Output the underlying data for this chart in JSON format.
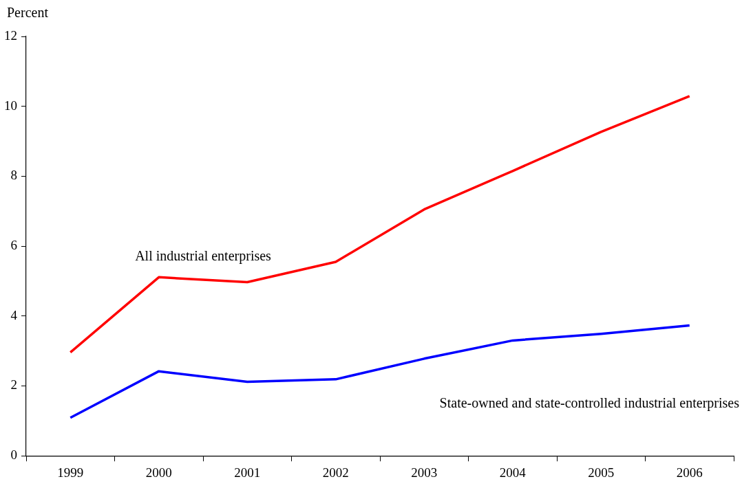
{
  "chart_data": {
    "type": "line",
    "ylabel": "Percent",
    "categories": [
      "1999",
      "2000",
      "2001",
      "2002",
      "2003",
      "2004",
      "2005",
      "2006"
    ],
    "series": [
      {
        "name": "All industrial enterprises",
        "color": "#ff0000",
        "values": [
          2.96,
          5.11,
          4.97,
          5.55,
          7.05,
          8.15,
          9.27,
          10.29
        ]
      },
      {
        "name": "State-owned and state-controlled industrial enterprises",
        "color": "#0000ff",
        "values": [
          1.09,
          2.42,
          2.12,
          2.19,
          2.78,
          3.3,
          3.49,
          3.73
        ]
      }
    ],
    "ylim": [
      0,
      12
    ],
    "yticks": [
      0,
      2,
      4,
      6,
      8,
      10,
      12
    ],
    "grid": false,
    "legend": false,
    "marker": "none",
    "line_style": "solid"
  }
}
